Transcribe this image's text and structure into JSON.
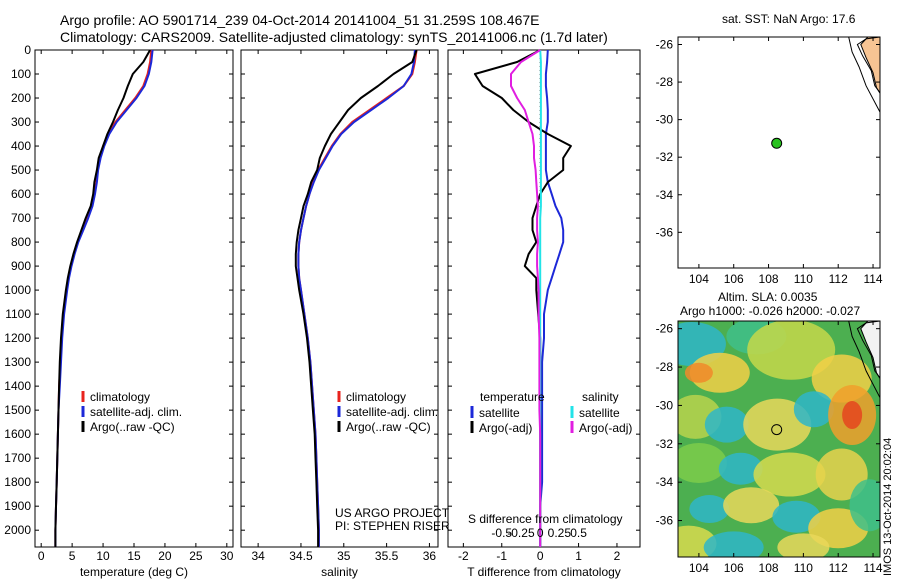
{
  "header": {
    "line1": "Argo profile: AO 5901714_239 04-Oct-2014 20141004_51 31.259S 108.467E",
    "line2": "Climatology: CARS2009. Satellite-adjusted climatology: synTS_20141006.nc (1.7d later)"
  },
  "colors": {
    "climatology": "#e8231e",
    "satellite": "#1c28d8",
    "argo": "#000000",
    "sat_salinity": "#22e3e8",
    "argo_salinity": "#e01ee0",
    "land": "#f7c493",
    "argo_point": "#29c21f"
  },
  "side_note": "IMOS 13-Oct-2014 20:02:04",
  "chart_data": [
    {
      "type": "line",
      "name": "temperature-profile",
      "xlabel": "temperature (deg C)",
      "xlim": [
        -1,
        31
      ],
      "xticks": [
        0,
        5,
        10,
        15,
        20,
        25,
        30
      ],
      "ylim": [
        2070,
        0
      ],
      "yticks": [
        0,
        100,
        200,
        300,
        400,
        500,
        600,
        700,
        800,
        900,
        1000,
        1100,
        1200,
        1300,
        1400,
        1500,
        1600,
        1700,
        1800,
        1900,
        2000
      ],
      "depth": [
        0,
        50,
        100,
        150,
        200,
        250,
        300,
        350,
        400,
        450,
        500,
        550,
        600,
        650,
        700,
        750,
        800,
        850,
        900,
        950,
        1000,
        1100,
        1200,
        1300,
        1400,
        1500,
        1600,
        1700,
        1800,
        1900,
        2000,
        2070
      ],
      "legend": [
        "climatology",
        "satellite-adj. clim.",
        "Argo(..raw -QC)"
      ],
      "series": [
        {
          "name": "climatology",
          "values": [
            17.8,
            17.6,
            17.2,
            16.5,
            15.2,
            13.6,
            12.0,
            10.8,
            10.0,
            9.5,
            9.1,
            8.9,
            8.6,
            8.2,
            7.5,
            6.7,
            5.9,
            5.3,
            4.8,
            4.4,
            4.1,
            3.6,
            3.3,
            3.1,
            2.9,
            2.8,
            2.7,
            2.6,
            2.5,
            2.4,
            2.3,
            2.3
          ]
        },
        {
          "name": "satellite-adj. clim.",
          "values": [
            18.0,
            17.8,
            17.4,
            16.7,
            15.4,
            13.8,
            12.2,
            11.0,
            10.2,
            9.6,
            9.2,
            9.0,
            8.7,
            8.3,
            7.6,
            6.8,
            6.0,
            5.4,
            4.9,
            4.5,
            4.2,
            3.7,
            3.4,
            3.2,
            3.0,
            2.8,
            2.7,
            2.6,
            2.5,
            2.4,
            2.3,
            2.3
          ]
        },
        {
          "name": "Argo(..raw -QC)",
          "values": [
            17.6,
            16.5,
            14.8,
            14.0,
            13.3,
            12.4,
            11.6,
            10.7,
            10.0,
            9.3,
            9.0,
            8.6,
            8.4,
            8.0,
            7.2,
            6.5,
            5.8,
            5.2,
            4.7,
            4.3,
            4.0,
            3.5,
            3.2,
            3.0,
            2.9,
            2.8,
            2.7,
            2.6,
            2.5,
            2.4,
            2.3,
            2.3
          ]
        }
      ]
    },
    {
      "type": "line",
      "name": "salinity-profile",
      "xlabel": "salinity",
      "xlim": [
        33.8,
        36.1
      ],
      "xticks": [
        34,
        34.5,
        35,
        35.5,
        36
      ],
      "ylim": [
        2070,
        0
      ],
      "depth": [
        0,
        50,
        100,
        150,
        200,
        250,
        300,
        350,
        400,
        450,
        500,
        550,
        600,
        650,
        700,
        750,
        800,
        850,
        900,
        950,
        1000,
        1100,
        1200,
        1300,
        1400,
        1500,
        1600,
        1700,
        1800,
        1900,
        2000,
        2070
      ],
      "legend": [
        "climatology",
        "satellite-adj. clim.",
        "Argo(..raw -QC)"
      ],
      "annotation": [
        "US ARGO PROJECT",
        "PI: STEPHEN RISER"
      ],
      "series": [
        {
          "name": "climatology",
          "values": [
            35.85,
            35.83,
            35.8,
            35.7,
            35.5,
            35.3,
            35.1,
            34.96,
            34.86,
            34.78,
            34.7,
            34.64,
            34.6,
            34.56,
            34.53,
            34.5,
            34.48,
            34.47,
            34.47,
            34.48,
            34.5,
            34.54,
            34.58,
            34.61,
            34.63,
            34.65,
            34.67,
            34.68,
            34.69,
            34.7,
            34.71,
            34.71
          ]
        },
        {
          "name": "satellite-adj. clim.",
          "values": [
            35.83,
            35.82,
            35.79,
            35.7,
            35.52,
            35.32,
            35.12,
            34.97,
            34.87,
            34.79,
            34.71,
            34.65,
            34.6,
            34.56,
            34.53,
            34.5,
            34.48,
            34.47,
            34.47,
            34.48,
            34.5,
            34.54,
            34.58,
            34.61,
            34.63,
            34.65,
            34.67,
            34.68,
            34.69,
            34.7,
            34.71,
            34.71
          ]
        },
        {
          "name": "Argo(..raw -QC)",
          "values": [
            35.85,
            35.8,
            35.58,
            35.4,
            35.2,
            35.05,
            34.95,
            34.85,
            34.78,
            34.72,
            34.69,
            34.62,
            34.58,
            34.53,
            34.5,
            34.47,
            34.45,
            34.44,
            34.44,
            34.46,
            34.48,
            34.53,
            34.57,
            34.6,
            34.62,
            34.64,
            34.66,
            34.67,
            34.68,
            34.69,
            34.7,
            34.7
          ]
        }
      ]
    },
    {
      "type": "line",
      "name": "difference-profile",
      "xlabel": "T difference from climatology",
      "xlim": [
        -2.4,
        2.6
      ],
      "xticks": [
        -2,
        -1,
        0,
        1,
        2
      ],
      "s_label": "S difference from climatology",
      "s_ticks": [
        "-0.5",
        "-0.25",
        "0",
        "0.25",
        "0.5"
      ],
      "ylim": [
        2070,
        0
      ],
      "depth": [
        0,
        50,
        100,
        150,
        200,
        250,
        300,
        350,
        400,
        450,
        500,
        550,
        600,
        650,
        700,
        750,
        800,
        850,
        900,
        950,
        1000,
        1100,
        1200,
        1300,
        1400,
        1500,
        1600,
        1700,
        1800,
        1900,
        2000,
        2070
      ],
      "legend_headers": [
        "temperature",
        "salinity"
      ],
      "legend": [
        "satellite",
        "Argo(-adj)",
        "satellite",
        "Argo(-adj)"
      ],
      "series": [
        {
          "name": "T satellite",
          "values": [
            0.2,
            0.18,
            0.15,
            0.15,
            0.18,
            0.2,
            0.2,
            0.15,
            0.15,
            0.15,
            0.15,
            0.2,
            0.3,
            0.4,
            0.55,
            0.6,
            0.6,
            0.5,
            0.4,
            0.3,
            0.2,
            0.1,
            0.1,
            0.05,
            0.05,
            0.05,
            0.05,
            0.05,
            0.05,
            0.0,
            0.0,
            0.0
          ]
        },
        {
          "name": "T Argo(-adj)",
          "values": [
            0.0,
            -0.6,
            -1.7,
            -1.5,
            -1.0,
            -0.7,
            -0.3,
            0.2,
            0.8,
            0.6,
            0.6,
            0.2,
            0.0,
            -0.1,
            -0.2,
            -0.2,
            -0.1,
            -0.3,
            -0.4,
            -0.1,
            -0.1,
            -0.05,
            0.0,
            0.0,
            0.0,
            0.0,
            0.0,
            0.0,
            0.0,
            0.0,
            0.0,
            0.0
          ]
        },
        {
          "name": "S satellite",
          "values": [
            0.0,
            0.01,
            0.01,
            0.01,
            0.01,
            0.01,
            0.01,
            0.01,
            0.01,
            0.01,
            0.01,
            0.01,
            0.01,
            0.01,
            0.0,
            0.0,
            0.0,
            0.0,
            0.0,
            0.0,
            0.0,
            0.0,
            0.0,
            0.0,
            0.0,
            0.0,
            0.0,
            0.0,
            0.0,
            0.0,
            0.0,
            0.0
          ]
        },
        {
          "name": "S Argo(-adj)",
          "values": [
            0.0,
            -0.25,
            -0.38,
            -0.38,
            -0.3,
            -0.2,
            -0.15,
            -0.1,
            -0.08,
            -0.08,
            -0.06,
            -0.05,
            -0.04,
            -0.03,
            -0.04,
            -0.04,
            -0.03,
            -0.04,
            -0.04,
            -0.03,
            -0.02,
            -0.02,
            -0.01,
            -0.01,
            -0.01,
            -0.01,
            0.0,
            0.0,
            0.0,
            0.0,
            0.0,
            0.0
          ]
        }
      ]
    },
    {
      "type": "scatter",
      "name": "location-map",
      "title": "sat. SST: NaN Argo: 17.6",
      "xlim": [
        102.8,
        114.4
      ],
      "xticks": [
        104,
        106,
        108,
        110,
        112,
        114
      ],
      "ylim": [
        -37.9,
        -25.6
      ],
      "yticks": [
        -26,
        -28,
        -30,
        -32,
        -34,
        -36
      ],
      "point": {
        "lon": 108.467,
        "lat": -31.259
      }
    },
    {
      "type": "heatmap",
      "name": "altimetry-map",
      "title_line1": "Altim. SLA: 0.0035",
      "title_line2": "Argo h1000: -0.026 h2000: -0.027",
      "xlim": [
        102.8,
        114.4
      ],
      "xticks": [
        104,
        106,
        108,
        110,
        112,
        114
      ],
      "ylim": [
        -37.9,
        -25.6
      ],
      "yticks": [
        -26,
        -28,
        -30,
        -32,
        -34,
        -36
      ],
      "point": {
        "lon": 108.467,
        "lat": -31.259
      },
      "cells": [
        [
          0.0,
          24,
          0.4,
          -27.0,
          -28.3
        ],
        [
          0.0,
          10,
          0.4,
          -33.5,
          -32.0
        ],
        [
          0.0,
          5,
          0.4,
          -24.0,
          -34.8
        ],
        [
          0.0,
          -6,
          0.4,
          -18.0,
          -34.8
        ],
        [
          0.0,
          12,
          0.4,
          -4.0,
          -37.0
        ]
      ]
    }
  ]
}
